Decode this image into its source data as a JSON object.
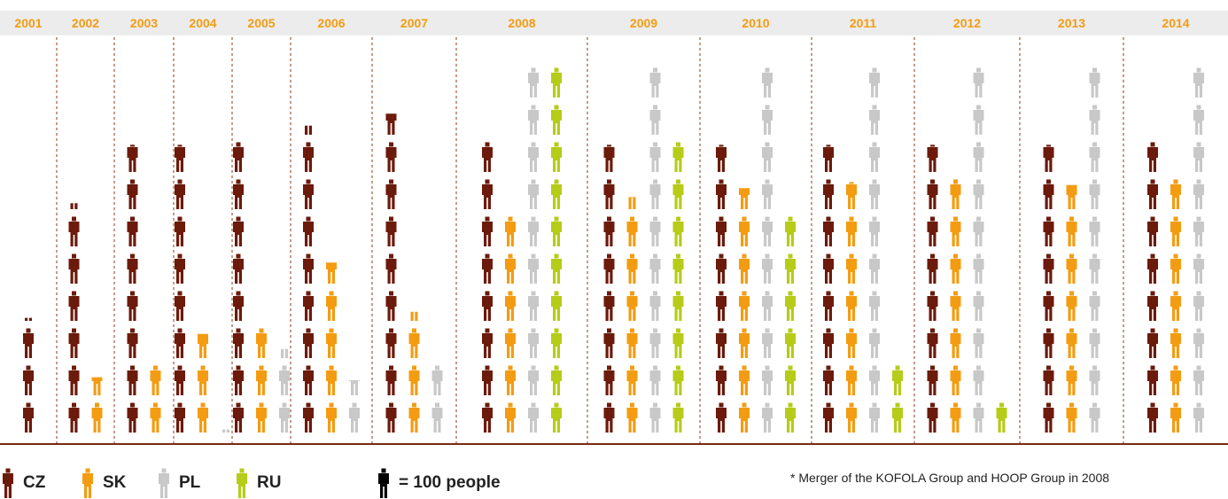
{
  "chart_data": {
    "type": "pictogram",
    "categories": [
      "2001",
      "2002",
      "2003",
      "2004",
      "2005",
      "2006",
      "2007",
      "2008",
      "2009",
      "2010",
      "2011",
      "2012",
      "2013",
      "2014"
    ],
    "unit": "= 100 people",
    "series": [
      {
        "name": "CZ",
        "color": "#6b1a0b",
        "values": [
          310,
          620,
          790,
          790,
          800,
          830,
          870,
          800,
          790,
          790,
          790,
          790,
          790,
          800
        ]
      },
      {
        "name": "SK",
        "color": "#f39c12",
        "values": [
          0,
          160,
          200,
          280,
          300,
          470,
          330,
          600,
          640,
          670,
          690,
          700,
          680,
          700
        ]
      },
      {
        "name": "PL",
        "color": "#c8c8c8",
        "values": [
          0,
          0,
          0,
          10,
          230,
          150,
          200,
          1000,
          1000,
          1000,
          1000,
          1000,
          1000,
          1000
        ]
      },
      {
        "name": "RU",
        "color": "#b5cc18",
        "values": [
          0,
          0,
          0,
          0,
          0,
          0,
          0,
          1000,
          800,
          600,
          200,
          100,
          0,
          0
        ]
      }
    ],
    "header_color": "#f39c12",
    "footnote": "* Merger of the KOFOLA Group and HOOP Group in 2008"
  },
  "legend": {
    "items": [
      {
        "code": "CZ",
        "color": "#6b1a0b"
      },
      {
        "code": "SK",
        "color": "#f39c12"
      },
      {
        "code": "PL",
        "color": "#c8c8c8"
      },
      {
        "code": "RU",
        "color": "#b5cc18"
      }
    ],
    "unit_label": "= 100 people",
    "unit_color": "#000000"
  },
  "footnote": "* Merger of the KOFOLA Group and HOOP Group in 2008"
}
